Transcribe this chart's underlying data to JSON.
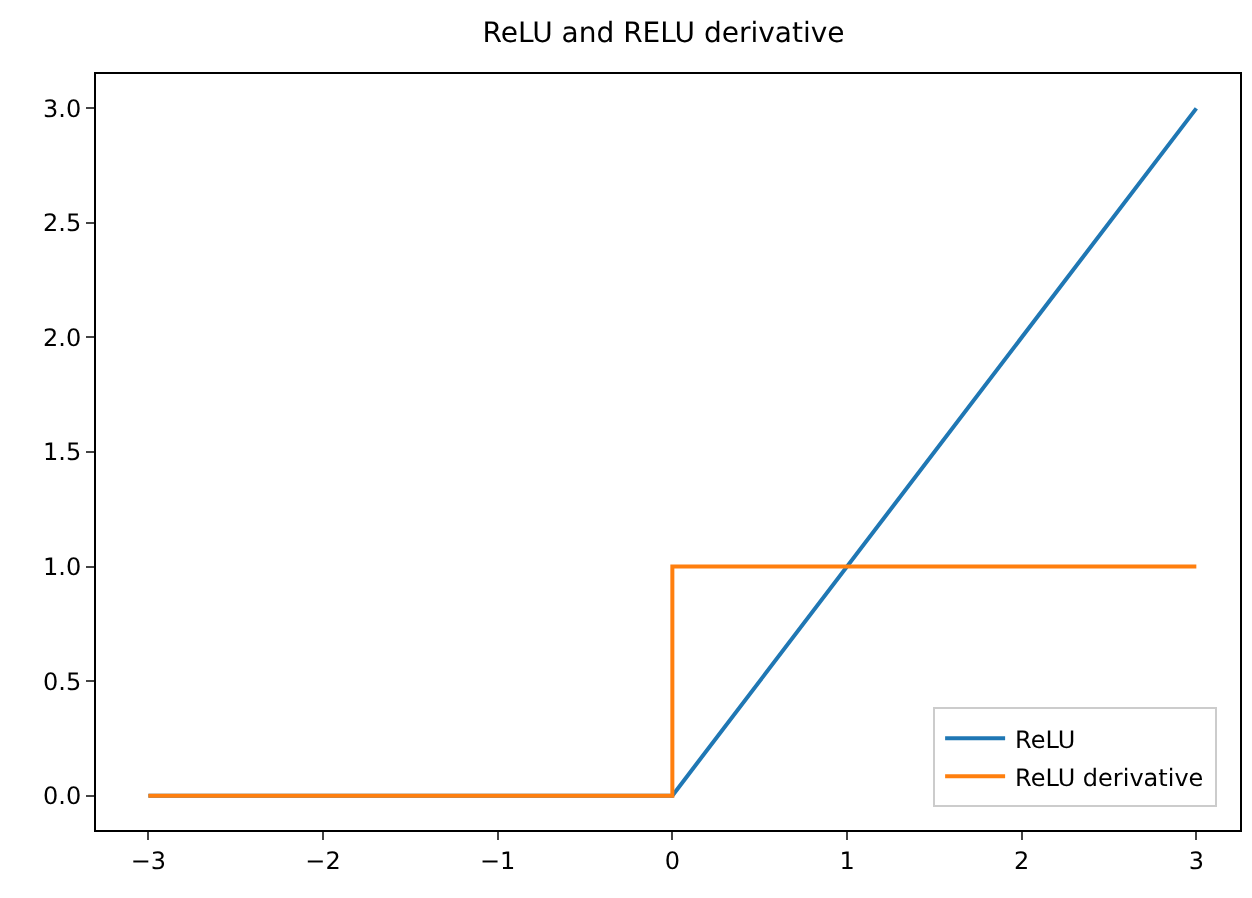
{
  "chart_data": {
    "type": "line",
    "title": "ReLU and RELU derivative",
    "series": [
      {
        "name": "ReLU",
        "color": "#1f77b4",
        "x": [
          -3,
          0,
          3
        ],
        "values": [
          0,
          0,
          3
        ]
      },
      {
        "name": "ReLU derivative",
        "color": "#ff7f0e",
        "x": [
          -3,
          0,
          0,
          3
        ],
        "values": [
          0,
          0,
          1,
          1
        ]
      }
    ],
    "xlim": [
      -3.3,
      3.25
    ],
    "ylim": [
      -0.15,
      3.15
    ],
    "xticks": [
      {
        "value": -3,
        "label": "−3"
      },
      {
        "value": -2,
        "label": "−2"
      },
      {
        "value": -1,
        "label": "−1"
      },
      0,
      1,
      2,
      3
    ],
    "yticks": [
      {
        "value": 0,
        "label": "0.0"
      },
      {
        "value": 0.5,
        "label": "0.5"
      },
      {
        "value": 1,
        "label": "1.0"
      },
      {
        "value": 1.5,
        "label": "1.5"
      },
      {
        "value": 2,
        "label": "2.0"
      },
      {
        "value": 2.5,
        "label": "2.5"
      },
      {
        "value": 3,
        "label": "3.0"
      }
    ],
    "legend": "bottom right",
    "marker": "none",
    "line_style": "solid"
  }
}
